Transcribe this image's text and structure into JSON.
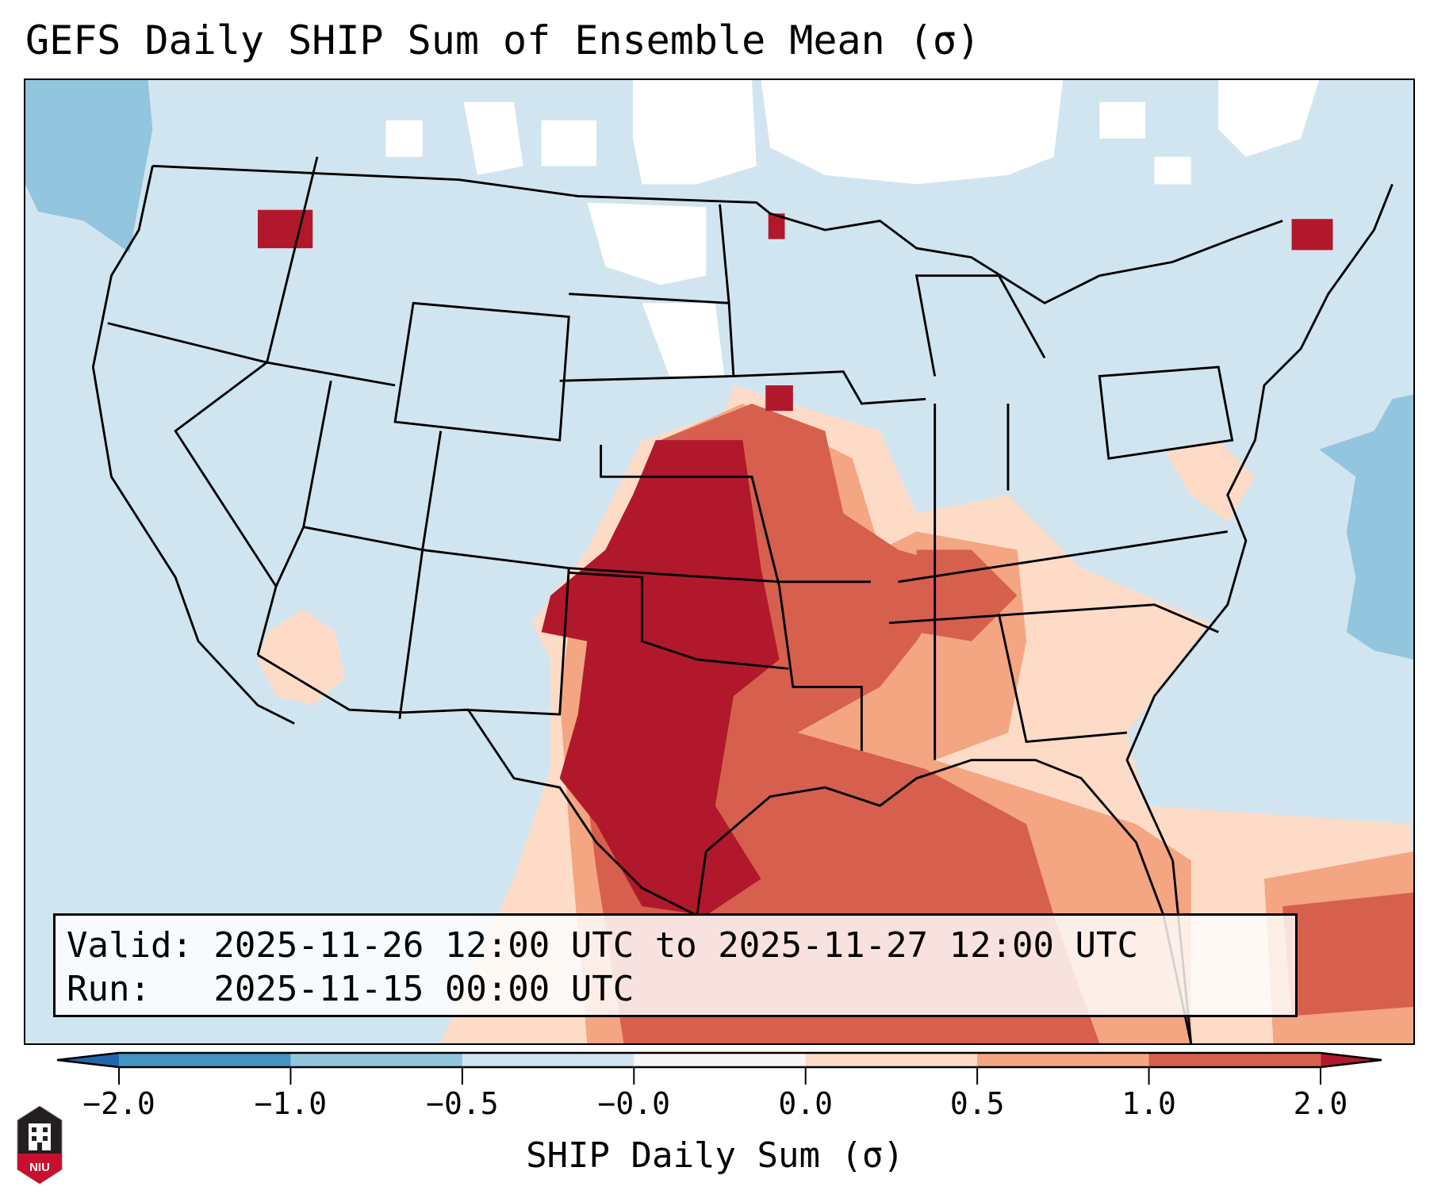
{
  "title": "GEFS Daily SHIP Sum of Ensemble Mean (σ)",
  "info": {
    "valid_line": "Valid: 2025-11-26 12:00 UTC to 2025-11-27 12:00 UTC",
    "run_line": "Run:   2025-11-15 00:00 UTC"
  },
  "colorbar": {
    "label": "SHIP Daily Sum (σ)",
    "ticks": [
      "−2.0",
      "−1.0",
      "−0.5",
      "−0.0",
      "0.0",
      "0.5",
      "1.0",
      "2.0"
    ],
    "bin_colors": [
      "#4393c3",
      "#92c5de",
      "#d1e5f0",
      "#f7f7f7",
      "#fddbc7",
      "#f4a582",
      "#d6604d"
    ],
    "extend_low_color": "#2166ac",
    "extend_high_color": "#b2182b"
  },
  "logo": {
    "text": "NIU"
  }
}
